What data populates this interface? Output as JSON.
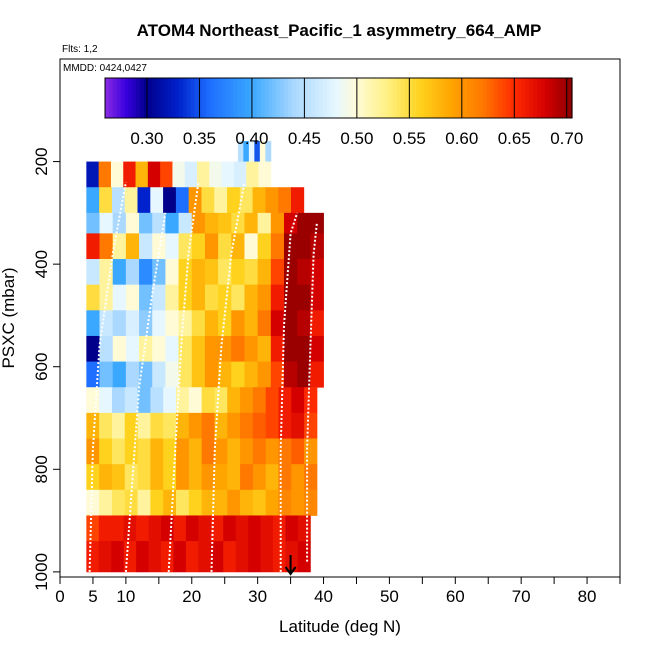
{
  "chart_data": {
    "type": "heatmap",
    "title": "ATOM4 Northeast_Pacific_1 asymmetry_664_AMP",
    "flights_label": "Flts: 1,2",
    "mmdd_label": "MMDD: 0424,0427",
    "xlabel": "Latitude (deg N)",
    "ylabel": "PSXC (mbar)",
    "xlim": [
      0,
      85
    ],
    "ylim": [
      1010,
      0
    ],
    "x_ticks": [
      0,
      5,
      10,
      20,
      30,
      40,
      50,
      60,
      70,
      80
    ],
    "x_minor_ticks": [
      15,
      25,
      35,
      45,
      55,
      65,
      75,
      85
    ],
    "y_ticks": [
      200,
      400,
      600,
      800,
      1000
    ],
    "colorbar": {
      "range": [
        0.26,
        0.705
      ],
      "ticks": [
        0.3,
        0.35,
        0.4,
        0.45,
        0.5,
        0.55,
        0.6,
        0.65,
        0.7
      ],
      "tick_labels": [
        "0.30",
        "0.35",
        "0.40",
        "0.45",
        "0.50",
        "0.55",
        "0.60",
        "0.65",
        "0.70"
      ],
      "stops": [
        {
          "v": 0.26,
          "c": "#8a2be2"
        },
        {
          "v": 0.28,
          "c": "#3a00e0"
        },
        {
          "v": 0.3,
          "c": "#00008b"
        },
        {
          "v": 0.33,
          "c": "#0022cc"
        },
        {
          "v": 0.36,
          "c": "#1e6fff"
        },
        {
          "v": 0.4,
          "c": "#3aa8ff"
        },
        {
          "v": 0.44,
          "c": "#aad8ff"
        },
        {
          "v": 0.48,
          "c": "#e6f7ff"
        },
        {
          "v": 0.5,
          "c": "#fffbd6"
        },
        {
          "v": 0.53,
          "c": "#fff080"
        },
        {
          "v": 0.56,
          "c": "#ffd21e"
        },
        {
          "v": 0.59,
          "c": "#ffa500"
        },
        {
          "v": 0.62,
          "c": "#ff7800"
        },
        {
          "v": 0.65,
          "c": "#ff2a00"
        },
        {
          "v": 0.68,
          "c": "#d40000"
        },
        {
          "v": 0.705,
          "c": "#8b0000"
        }
      ]
    },
    "latitude_columns": [
      4,
      6,
      8,
      10,
      12,
      14,
      16,
      18,
      20,
      22,
      24,
      26,
      28,
      30,
      32,
      34,
      36,
      38
    ],
    "pressure_levels": [
      {
        "top": 160,
        "bot": 200,
        "lat_min": 27,
        "lat_max": 32,
        "values": [
          0.45,
          0.4,
          0.48,
          0.35,
          0.5,
          0.44
        ]
      },
      {
        "top": 200,
        "bot": 250,
        "lat_min": 4,
        "lat_max": 32,
        "values": [
          0.32,
          0.62,
          0.5,
          0.66,
          0.58,
          0.68,
          0.64,
          0.49,
          0.47,
          0.52,
          0.49,
          0.48,
          0.47,
          0.52,
          0.5
        ]
      },
      {
        "top": 250,
        "bot": 300,
        "lat_min": 4,
        "lat_max": 37,
        "values": [
          0.4,
          0.55,
          0.45,
          0.52,
          0.33,
          0.48,
          0.3,
          0.36,
          0.6,
          0.55,
          0.52,
          0.56,
          0.54,
          0.58,
          0.6,
          0.62,
          0.66
        ]
      },
      {
        "top": 300,
        "bot": 340,
        "lat_min": 4,
        "lat_max": 40,
        "values": [
          0.42,
          0.48,
          0.44,
          0.5,
          0.42,
          0.45,
          0.4,
          0.46,
          0.6,
          0.58,
          0.57,
          0.55,
          0.58,
          0.52,
          0.6,
          0.68,
          0.7,
          0.7
        ]
      },
      {
        "top": 340,
        "bot": 390,
        "lat_min": 4,
        "lat_max": 40,
        "values": [
          0.66,
          0.62,
          0.52,
          0.58,
          0.46,
          0.5,
          0.48,
          0.54,
          0.56,
          0.6,
          0.55,
          0.58,
          0.5,
          0.56,
          0.62,
          0.7,
          0.7,
          0.69
        ]
      },
      {
        "top": 390,
        "bot": 440,
        "lat_min": 4,
        "lat_max": 40,
        "values": [
          0.46,
          0.52,
          0.4,
          0.44,
          0.38,
          0.42,
          0.5,
          0.56,
          0.58,
          0.57,
          0.54,
          0.56,
          0.55,
          0.58,
          0.64,
          0.7,
          0.69,
          0.68
        ]
      },
      {
        "top": 440,
        "bot": 490,
        "lat_min": 4,
        "lat_max": 40,
        "values": [
          0.55,
          0.52,
          0.48,
          0.5,
          0.42,
          0.46,
          0.52,
          0.56,
          0.58,
          0.55,
          0.56,
          0.54,
          0.58,
          0.6,
          0.66,
          0.7,
          0.7,
          0.68
        ]
      },
      {
        "top": 490,
        "bot": 540,
        "lat_min": 4,
        "lat_max": 40,
        "values": [
          0.4,
          0.46,
          0.44,
          0.47,
          0.43,
          0.48,
          0.5,
          0.52,
          0.55,
          0.58,
          0.56,
          0.6,
          0.58,
          0.62,
          0.68,
          0.7,
          0.69,
          0.66
        ]
      },
      {
        "top": 540,
        "bot": 590,
        "lat_min": 4,
        "lat_max": 40,
        "values": [
          0.3,
          0.45,
          0.5,
          0.48,
          0.52,
          0.5,
          0.48,
          0.54,
          0.57,
          0.6,
          0.6,
          0.62,
          0.6,
          0.58,
          0.66,
          0.7,
          0.7,
          0.68
        ]
      },
      {
        "top": 590,
        "bot": 640,
        "lat_min": 4,
        "lat_max": 40,
        "values": [
          0.36,
          0.42,
          0.4,
          0.44,
          0.42,
          0.46,
          0.49,
          0.54,
          0.57,
          0.6,
          0.58,
          0.56,
          0.58,
          0.6,
          0.64,
          0.69,
          0.7,
          0.66
        ]
      },
      {
        "top": 640,
        "bot": 690,
        "lat_min": 4,
        "lat_max": 39,
        "values": [
          0.5,
          0.48,
          0.44,
          0.46,
          0.42,
          0.45,
          0.48,
          0.52,
          0.5,
          0.55,
          0.54,
          0.58,
          0.6,
          0.62,
          0.64,
          0.66,
          0.68,
          0.65
        ]
      },
      {
        "top": 690,
        "bot": 740,
        "lat_min": 4,
        "lat_max": 39,
        "values": [
          0.58,
          0.54,
          0.52,
          0.56,
          0.52,
          0.55,
          0.54,
          0.58,
          0.6,
          0.62,
          0.58,
          0.6,
          0.62,
          0.63,
          0.64,
          0.66,
          0.67,
          0.64
        ]
      },
      {
        "top": 740,
        "bot": 790,
        "lat_min": 4,
        "lat_max": 39,
        "values": [
          0.6,
          0.56,
          0.54,
          0.56,
          0.55,
          0.58,
          0.56,
          0.6,
          0.58,
          0.62,
          0.6,
          0.58,
          0.6,
          0.62,
          0.6,
          0.62,
          0.63,
          0.6
        ]
      },
      {
        "top": 790,
        "bot": 840,
        "lat_min": 4,
        "lat_max": 39,
        "values": [
          0.56,
          0.58,
          0.57,
          0.54,
          0.55,
          0.58,
          0.56,
          0.6,
          0.58,
          0.6,
          0.59,
          0.58,
          0.62,
          0.6,
          0.58,
          0.62,
          0.6,
          0.62
        ]
      },
      {
        "top": 840,
        "bot": 890,
        "lat_min": 4,
        "lat_max": 39,
        "values": [
          0.5,
          0.52,
          0.54,
          0.55,
          0.52,
          0.56,
          0.58,
          0.54,
          0.56,
          0.58,
          0.58,
          0.6,
          0.58,
          0.57,
          0.59,
          0.61,
          0.6,
          0.61
        ]
      },
      {
        "top": 890,
        "bot": 940,
        "lat_min": 4,
        "lat_max": 38,
        "values": [
          0.64,
          0.66,
          0.66,
          0.67,
          0.66,
          0.67,
          0.68,
          0.66,
          0.68,
          0.67,
          0.66,
          0.68,
          0.67,
          0.68,
          0.67,
          0.66,
          0.68,
          0.67
        ]
      },
      {
        "top": 940,
        "bot": 1000,
        "lat_min": 4,
        "lat_max": 38,
        "values": [
          0.66,
          0.67,
          0.68,
          0.66,
          0.68,
          0.67,
          0.66,
          0.68,
          0.66,
          0.67,
          0.68,
          0.66,
          0.67,
          0.68,
          0.67,
          0.66,
          0.67,
          0.68
        ]
      }
    ],
    "flight_tracks": [
      [
        [
          4.5,
          1000
        ],
        [
          5,
          760
        ],
        [
          6,
          560
        ],
        [
          8,
          380
        ],
        [
          10,
          240
        ]
      ],
      [
        [
          10,
          1000
        ],
        [
          11,
          820
        ],
        [
          12,
          640
        ],
        [
          14,
          460
        ],
        [
          16,
          300
        ]
      ],
      [
        [
          16.5,
          1000
        ],
        [
          17.5,
          760
        ],
        [
          18.5,
          540
        ],
        [
          19.5,
          380
        ],
        [
          21,
          240
        ]
      ],
      [
        [
          23,
          1000
        ],
        [
          23.5,
          760
        ],
        [
          24.5,
          560
        ],
        [
          26,
          380
        ],
        [
          28,
          240
        ]
      ],
      [
        [
          33.5,
          1000
        ],
        [
          33.5,
          760
        ],
        [
          34,
          520
        ],
        [
          35,
          340
        ],
        [
          36,
          300
        ]
      ],
      [
        [
          37.5,
          980
        ],
        [
          37.5,
          760
        ],
        [
          38,
          560
        ],
        [
          38.5,
          380
        ],
        [
          39,
          320
        ]
      ]
    ],
    "arrow_marker": {
      "lat": 35
    }
  }
}
